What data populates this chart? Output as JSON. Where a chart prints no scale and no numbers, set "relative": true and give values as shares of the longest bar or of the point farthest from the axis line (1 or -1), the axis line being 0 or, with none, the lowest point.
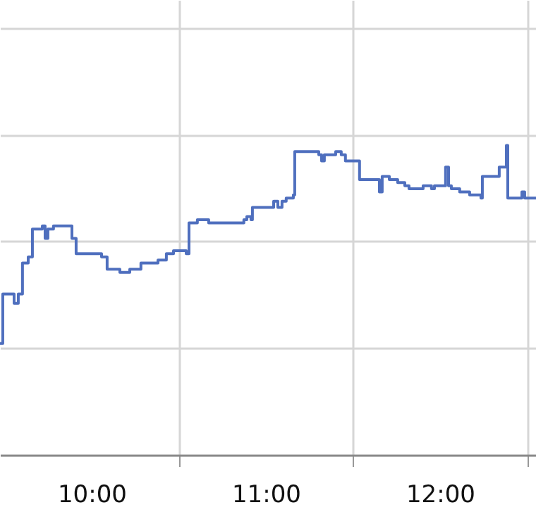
{
  "chart_data": {
    "type": "step",
    "relative": true,
    "grid": true,
    "xlim": [
      9.474,
      12.551
    ],
    "xticks": [
      {
        "value": 10,
        "label": "10:00"
      },
      {
        "value": 10.5,
        "label": null
      },
      {
        "value": 11,
        "label": "11:00"
      },
      {
        "value": 11.5,
        "label": null
      },
      {
        "value": 12,
        "label": "12:00"
      },
      {
        "value": 12.5,
        "label": null
      }
    ],
    "series": [
      {
        "color": "#4f6fbe",
        "x": [
          9.474,
          9.49,
          9.555,
          9.579,
          9.603,
          9.636,
          9.66,
          9.717,
          9.733,
          9.749,
          9.781,
          9.887,
          9.911,
          10.057,
          10.089,
          10.162,
          10.219,
          10.283,
          10.381,
          10.429,
          10.47,
          10.543,
          10.559,
          10.607,
          10.672,
          10.874,
          10.891,
          10.915,
          10.923,
          11.036,
          11.045,
          11.069,
          11.093,
          11.117,
          11.158,
          11.166,
          11.271,
          11.304,
          11.32,
          11.336,
          11.401,
          11.433,
          11.457,
          11.538,
          11.652,
          11.668,
          11.709,
          11.757,
          11.798,
          11.822,
          11.903,
          11.935,
          11.951,
          11.968,
          12.032,
          12.049,
          12.065,
          12.113,
          12.17,
          12.235,
          12.243,
          12.34,
          12.381,
          12.389,
          12.47,
          12.486,
          12.551
        ],
        "values": [
          0.36,
          0.52,
          0.49,
          0.52,
          0.62,
          0.64,
          0.73,
          0.74,
          0.7,
          0.73,
          0.74,
          0.7,
          0.65,
          0.64,
          0.6,
          0.59,
          0.6,
          0.62,
          0.63,
          0.65,
          0.66,
          0.65,
          0.75,
          0.76,
          0.75,
          0.76,
          0.77,
          0.76,
          0.8,
          0.8,
          0.82,
          0.8,
          0.82,
          0.83,
          0.84,
          0.98,
          0.98,
          0.97,
          0.95,
          0.97,
          0.98,
          0.97,
          0.95,
          0.89,
          0.85,
          0.9,
          0.89,
          0.88,
          0.87,
          0.86,
          0.87,
          0.87,
          0.86,
          0.87,
          0.93,
          0.87,
          0.86,
          0.85,
          0.84,
          0.83,
          0.9,
          0.93,
          1,
          0.83,
          0.85,
          0.83,
          0.83
        ]
      }
    ]
  }
}
